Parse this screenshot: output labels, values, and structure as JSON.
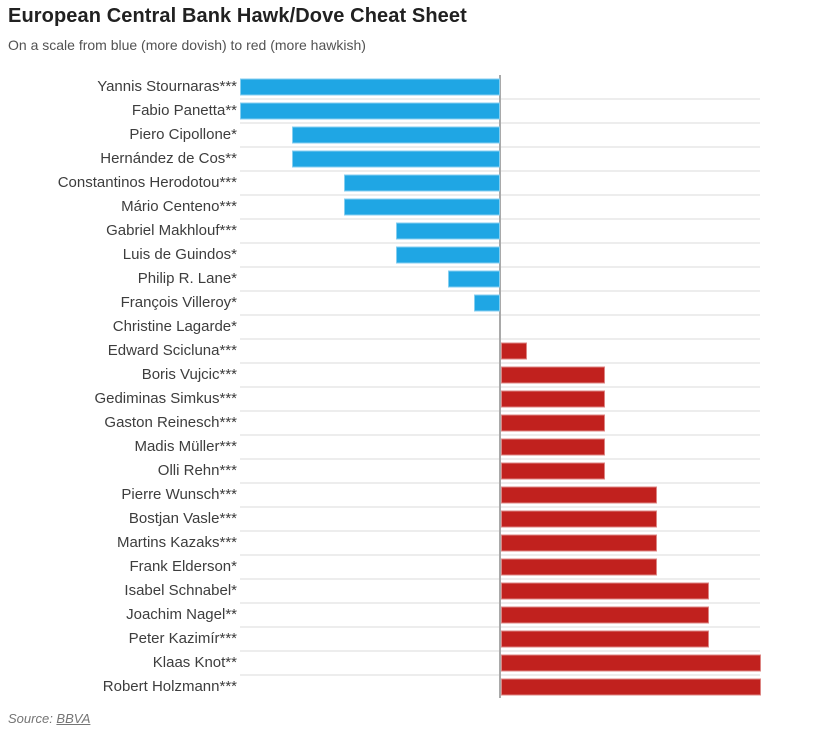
{
  "header": {
    "title": "European Central Bank Hawk/Dove Cheat Sheet",
    "subtitle": "On a scale from blue (more dovish) to red (more hawkish)"
  },
  "source": {
    "prefix": "Source: ",
    "link_label": "BBVA"
  },
  "chart_data": {
    "type": "bar",
    "orientation": "horizontal",
    "title": "European Central Bank Hawk/Dove Cheat Sheet",
    "subtitle": "On a scale from blue (more dovish) to red (more hawkish)",
    "categories": [
      "Yannis Stournaras***",
      "Fabio Panetta**",
      "Piero Cipollone*",
      "Hernández de Cos**",
      "Constantinos Herodotou***",
      "Mário Centeno***",
      "Gabriel Makhlouf***",
      "Luis de Guindos*",
      "Philip R. Lane*",
      "François Villeroy*",
      "Christine Lagarde*",
      "Edward Scicluna***",
      "Boris Vujcic***",
      "Gediminas Simkus***",
      "Gaston Reinesch***",
      "Madis Müller***",
      "Olli Rehn***",
      "Pierre Wunsch***",
      "Bostjan Vasle***",
      "Martins Kazaks***",
      "Frank Elderson*",
      "Isabel Schnabel*",
      "Joachim Nagel**",
      "Peter Kazimír***",
      "Klaas Knot**",
      "Robert Holzmann***"
    ],
    "values": [
      -10,
      -10,
      -8,
      -8,
      -6,
      -6,
      -4,
      -4,
      -2,
      -1,
      0,
      1,
      4,
      4,
      4,
      4,
      4,
      6,
      6,
      6,
      6,
      8,
      8,
      8,
      10,
      10
    ],
    "xlim": [
      -10,
      10
    ],
    "xlabel": "",
    "ylabel": "",
    "grid": "horizontal-between-rows",
    "zero_line": true,
    "legend": "none",
    "colors": {
      "dovish_blue": "#1FA6E4",
      "hawkish_red": "#C1211E",
      "gridline": "#ededed",
      "zero_axis": "#a9a9a9"
    }
  }
}
